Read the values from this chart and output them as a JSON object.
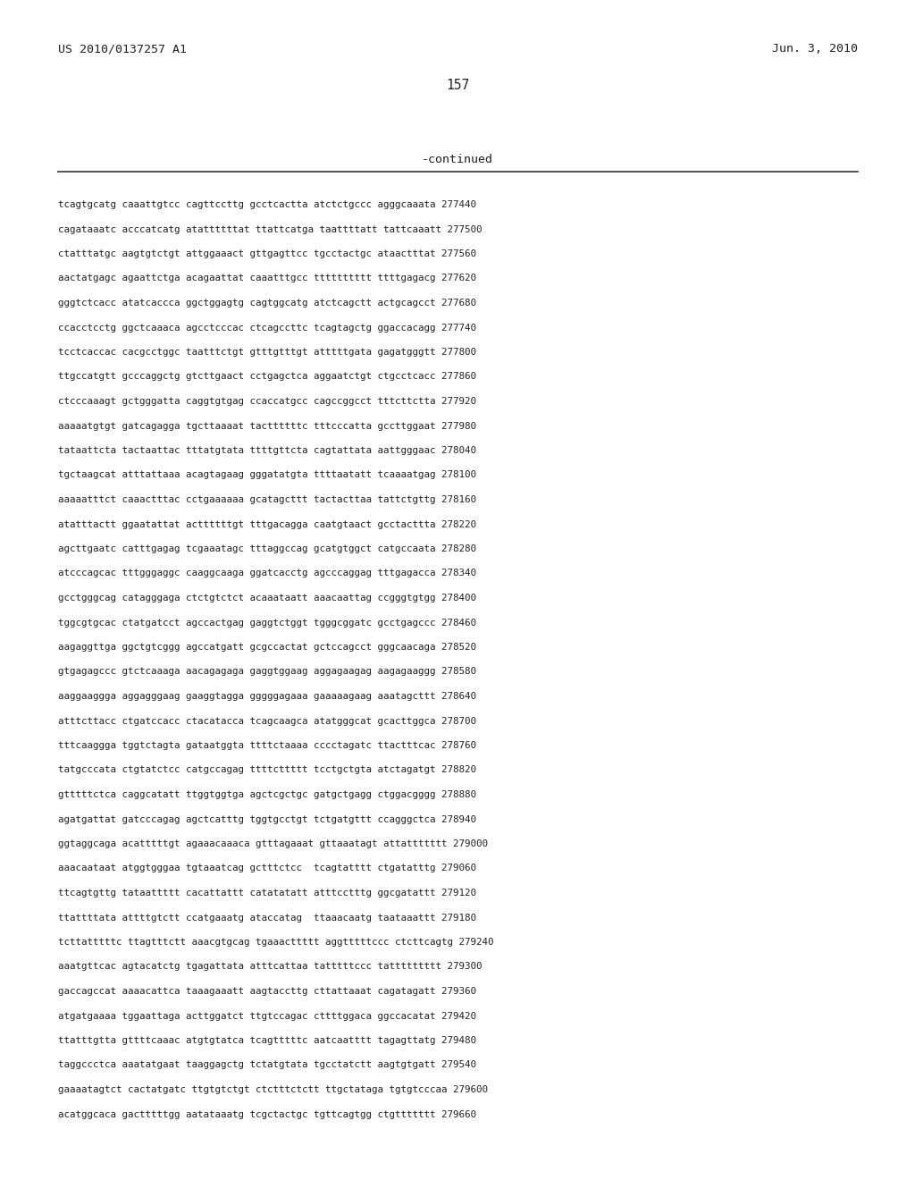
{
  "header_left": "US 2010/0137257 A1",
  "header_right": "Jun. 3, 2010",
  "page_number": "157",
  "continued_label": "-continued",
  "background_color": "#ffffff",
  "text_color": "#231f20",
  "sequence_lines": [
    "tcagtgcatg caaattgtcc cagttccttg gcctcactta atctctgccc agggcaaata 277440",
    "cagataaatc acccatcatg atattttttat ttattcatga taattttatt tattcaaatt 277500",
    "ctatttatgc aagtgtctgt attggaaact gttgagttcc tgcctactgc ataactttat 277560",
    "aactatgagc agaattctga acagaattat caaatttgcc tttttttttt ttttgagacg 277620",
    "gggtctcacc atatcaccca ggctggagtg cagtggcatg atctcagctt actgcagcct 277680",
    "ccacctcctg ggctcaaaca agcctcccac ctcagccttc tcagtagctg ggaccacagg 277740",
    "tcctcaccac cacgcctggc taatttctgt gtttgtttgt atttttgata gagatgggtt 277800",
    "ttgccatgtt gcccaggctg gtcttgaact cctgagctca aggaatctgt ctgcctcacc 277860",
    "ctcccaaagt gctgggatta caggtgtgag ccaccatgcc cagccggcct tttcttctta 277920",
    "aaaaatgtgt gatcagagga tgcttaaaat tacttttttc tttcccatta gccttggaat 277980",
    "tataattcta tactaattac tttatgtata ttttgttcta cagtattata aattgggaac 278040",
    "tgctaagcat atttattaaa acagtagaag gggatatgta ttttaatatt tcaaaatgag 278100",
    "aaaaatttct caaactttac cctgaaaaaa gcatagcttt tactacttaa tattctgttg 278160",
    "atatttactt ggaatattat acttttttgt tttgacagga caatgtaact gcctacttta 278220",
    "agcttgaatc catttgagag tcgaaatagc tttaggccag gcatgtggct catgccaata 278280",
    "atcccagcac tttgggaggc caaggcaaga ggatcacctg agcccaggag tttgagacca 278340",
    "gcctgggcag catagggaga ctctgtctct acaaataatt aaacaattag ccgggtgtgg 278400",
    "tggcgtgcac ctatgatcct agccactgag gaggtctggt tgggcggatc gcctgagccc 278460",
    "aagaggttga ggctgtcggg agccatgatt gcgccactat gctccagcct gggcaacaga 278520",
    "gtgagagccc gtctcaaaga aacagagaga gaggtggaag aggagaagag aagagaaggg 278580",
    "aaggaaggga aggagggaag gaaggtagga gggggagaaa gaaaaagaag aaatagcttt 278640",
    "atttcttacc ctgatccacc ctacatacca tcagcaagca atatgggcat gcacttggca 278700",
    "tttcaaggga tggtctagta gataatggta ttttctaaaa cccctagatc ttactttcac 278760",
    "tatgcccata ctgtatctcc catgccagag ttttcttttt tcctgctgta atctagatgt 278820",
    "gtttttctca caggcatatt ttggtggtga agctcgctgc gatgctgagg ctggacgggg 278880",
    "agatgattat gatcccagag agctcatttg tggtgcctgt tctgatgttt ccagggctca 278940",
    "ggtaggcaga acatttttgt agaaacaaaca gtttagaaat gttaaatagt attattttttt 279000",
    "aaacaataat atggtgggaa tgtaaatcag gctttctcc  tcagtatttt ctgatatttg 279060",
    "ttcagtgttg tataattttt cacattattt catatatatt atttcctttg ggcgatattt 279120",
    "ttattttata attttgtctt ccatgaaatg ataccatag  ttaaacaatg taataaattt 279180",
    "tcttatttttc ttagtttctt aaacgtgcag tgaaacttttt aggtttttccc ctcttcagtg 279240",
    "aaatgttcac agtacatctg tgagattata atttcattaa tatttttccc tattttttttt 279300",
    "gaccagccat aaaacattca taaagaaatt aagtaccttg cttattaaat cagatagatt 279360",
    "atgatgaaaa tggaattaga acttggatct ttgtccagac cttttggaca ggccacatat 279420",
    "ttatttgtta gttttcaaac atgtgtatca tcagtttttc aatcaatttt tagagttatg 279480",
    "taggccctca aaatatgaat taaggagctg tctatgtata tgcctatctt aagtgtgatt 279540",
    "gaaaatagtct cactatgatc ttgtgtctgt ctctttctctt ttgctataga tgtgtcccaa 279600",
    "acatggcaca gactttttgg aatataaatg tcgctactgc tgttcagtgg ctgttttttt 279660"
  ],
  "font_family": "DejaVu Sans Mono",
  "font_size_header": 9.5,
  "font_size_page": 10.5,
  "font_size_continued": 9.5,
  "font_size_sequence": 7.8,
  "background_color_line": "#333333"
}
